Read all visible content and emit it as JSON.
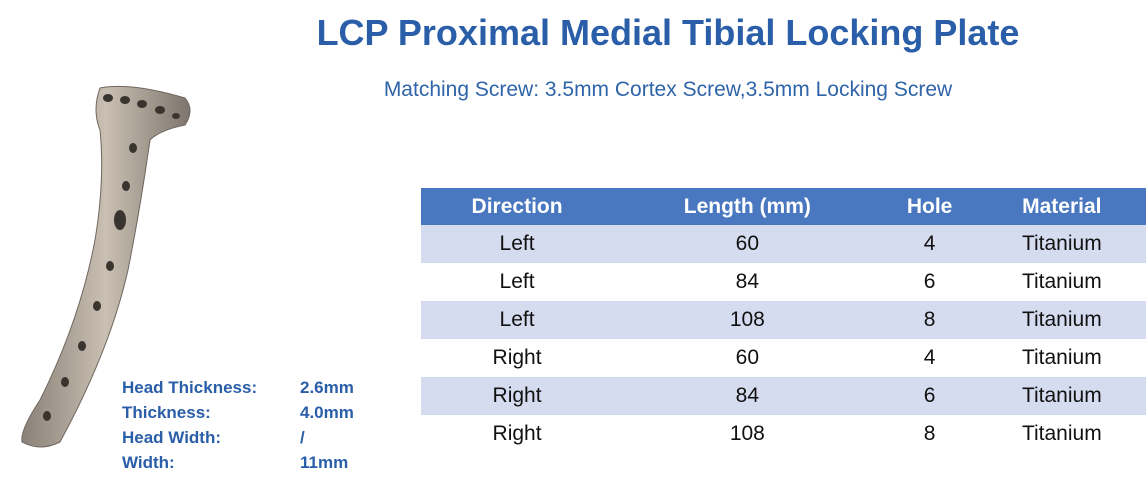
{
  "header": {
    "title": "LCP Proximal Medial Tibial Locking Plate",
    "subtitle": "Matching Screw: 3.5mm Cortex Screw,3.5mm Locking Screw"
  },
  "table": {
    "columns": [
      "Direction",
      "Length (mm)",
      "Hole",
      "Material"
    ],
    "rows": [
      [
        "Left",
        60,
        4,
        "Titanium"
      ],
      [
        "Left",
        84,
        6,
        "Titanium"
      ],
      [
        "Left",
        108,
        8,
        "Titanium"
      ],
      [
        "Right",
        60,
        4,
        "Titanium"
      ],
      [
        "Right",
        84,
        6,
        "Titanium"
      ],
      [
        "Right",
        108,
        8,
        "Titanium"
      ]
    ]
  },
  "specs": [
    {
      "label": "Head Thickness:",
      "value": "2.6mm"
    },
    {
      "label": "Thickness:",
      "value": "4.0mm"
    },
    {
      "label": "Head Width:",
      "value": "/"
    },
    {
      "label": "Width:",
      "value": "11mm"
    }
  ]
}
